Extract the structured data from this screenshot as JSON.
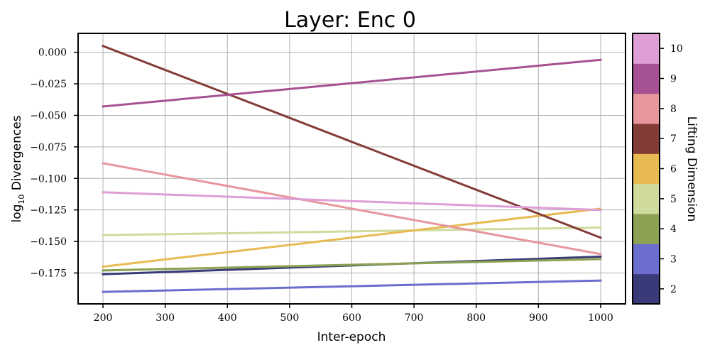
{
  "chart_data": {
    "type": "line",
    "title": "Layer: Enc 0",
    "xlabel": "Inter-epoch",
    "ylabel": "log10 Divergences",
    "ylabel_parts": {
      "base": "log",
      "sub": "10",
      "rest": " Divergences"
    },
    "xlim": [
      160,
      1040
    ],
    "ylim": [
      -0.1995,
      0.015
    ],
    "xticks": [
      200,
      300,
      400,
      500,
      600,
      700,
      800,
      900,
      1000
    ],
    "xtick_labels": [
      "200",
      "300",
      "400",
      "500",
      "600",
      "700",
      "800",
      "900",
      "1000"
    ],
    "yticks": [
      0.0,
      -0.025,
      -0.05,
      -0.075,
      -0.1,
      -0.125,
      -0.15,
      -0.175
    ],
    "ytick_labels": [
      "0.000",
      "−0.025",
      "−0.050",
      "−0.075",
      "−0.100",
      "−0.125",
      "−0.150",
      "−0.175"
    ],
    "grid": true,
    "series": [
      {
        "name": "2",
        "color": "#393b79",
        "x": [
          200,
          1000
        ],
        "y": [
          -0.176,
          -0.162
        ]
      },
      {
        "name": "3",
        "color": "#6b6ecf",
        "x": [
          200,
          1000
        ],
        "y": [
          -0.19,
          -0.181
        ]
      },
      {
        "name": "4",
        "color": "#8ca252",
        "x": [
          200,
          1000
        ],
        "y": [
          -0.173,
          -0.164
        ]
      },
      {
        "name": "5",
        "color": "#cedb9c",
        "x": [
          200,
          1000
        ],
        "y": [
          -0.145,
          -0.139
        ]
      },
      {
        "name": "6",
        "color": "#e7ba52",
        "x": [
          200,
          1000
        ],
        "y": [
          -0.17,
          -0.124
        ]
      },
      {
        "name": "7",
        "color": "#843c39",
        "x": [
          200,
          1000
        ],
        "y": [
          0.005,
          -0.147
        ]
      },
      {
        "name": "8",
        "color": "#e7969c",
        "x": [
          200,
          1000
        ],
        "y": [
          -0.088,
          -0.16
        ]
      },
      {
        "name": "9",
        "color": "#a55194",
        "x": [
          200,
          1000
        ],
        "y": [
          -0.043,
          -0.006
        ]
      },
      {
        "name": "10",
        "color": "#de9ed6",
        "x": [
          200,
          1000
        ],
        "y": [
          -0.111,
          -0.125
        ]
      }
    ],
    "colorbar": {
      "label": "Lifting Dimension",
      "ticks": [
        "2",
        "3",
        "4",
        "5",
        "6",
        "7",
        "8",
        "9",
        "10"
      ],
      "colors": [
        "#393b79",
        "#6b6ecf",
        "#8ca252",
        "#cedb9c",
        "#e7ba52",
        "#843c39",
        "#e7969c",
        "#a55194",
        "#de9ed6"
      ]
    }
  }
}
